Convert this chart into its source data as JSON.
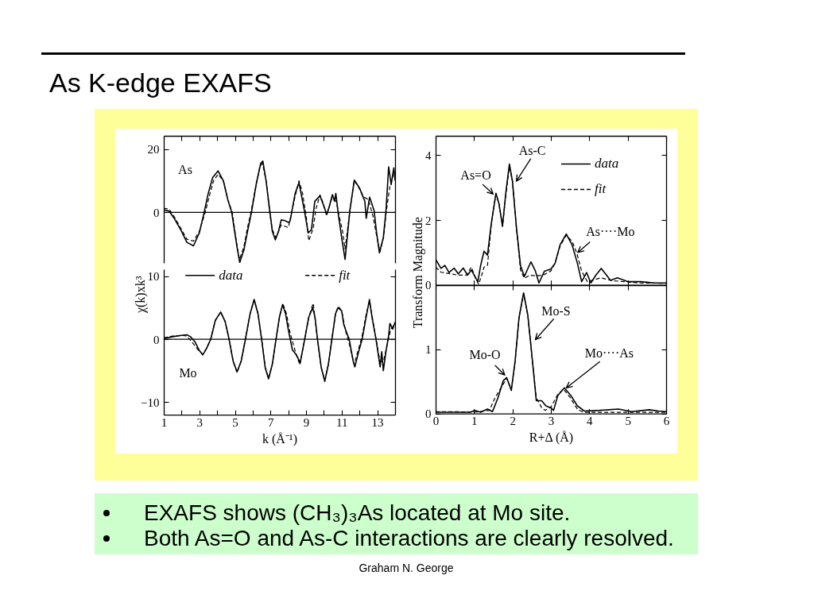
{
  "chart_data": [
    {
      "type": "line",
      "title": "As K-edge EXAFS",
      "xlim": [
        1,
        14
      ],
      "ylim": [
        -16,
        24.2
      ],
      "xticks": [
        1,
        {
          "value": 2,
          "label": null
        },
        3,
        {
          "value": 4,
          "label": null
        },
        5,
        {
          "value": 6,
          "label": null
        },
        7,
        {
          "value": 8,
          "label": null
        },
        9,
        {
          "value": 10,
          "label": null
        },
        11,
        {
          "value": 12,
          "label": null
        },
        13
      ],
      "yticks": [
        0,
        20
      ],
      "tick_labels": "y",
      "ref_lines": [
        {
          "axis": "y",
          "value": 0
        }
      ],
      "annotations": [
        "As"
      ],
      "series": [
        {
          "color": "#000000",
          "line_style": "solid",
          "x": [
            1.0,
            1.3,
            1.6,
            2.0,
            2.3,
            2.67,
            3.0,
            3.27,
            3.5,
            3.75,
            4.05,
            4.35,
            4.6,
            4.82,
            5.1,
            5.27,
            5.5,
            5.71,
            5.93,
            6.2,
            6.45,
            6.57,
            6.75,
            6.97,
            7.1,
            7.27,
            7.45,
            7.6,
            7.8,
            8.0,
            8.1,
            8.38,
            8.6,
            8.9,
            9.12,
            9.3,
            9.49,
            9.78,
            9.95,
            10.16,
            10.3,
            10.48,
            10.6,
            10.67,
            10.82,
            11.04,
            11.19,
            11.46,
            11.71,
            12.0,
            12.3,
            12.38,
            12.57,
            12.82,
            12.95,
            13.12,
            13.34,
            13.49,
            13.64,
            13.78,
            13.93,
            14.0
          ],
          "values": [
            0.8,
            0.4,
            -2,
            -6,
            -9.5,
            -10.6,
            -6.5,
            0,
            6,
            11,
            13.1,
            10,
            4,
            0,
            -10.4,
            -15.9,
            -12,
            -6,
            0,
            9,
            15.5,
            16.2,
            10,
            0,
            -6,
            -8.7,
            -6,
            -2.4,
            -2.6,
            -3.2,
            -2.8,
            5.9,
            9.4,
            0.6,
            -6.5,
            -5.5,
            3.5,
            5.2,
            2.7,
            -0.7,
            1.8,
            5.6,
            3.5,
            6.0,
            -1.1,
            -9.5,
            -14.9,
            0.6,
            10.2,
            7.7,
            3.5,
            -1.9,
            4.8,
            0.6,
            -6,
            -12.8,
            -8,
            0.6,
            14.4,
            8.8,
            14.1,
            10
          ]
        },
        {
          "color": "#000000",
          "line_style": "dashed",
          "x": [
            1.0,
            1.3,
            1.6,
            2.0,
            2.3,
            2.67,
            3.0,
            3.33,
            3.6,
            3.8,
            4.05,
            4.35,
            4.6,
            4.85,
            5.05,
            5.25,
            5.5,
            5.7,
            5.9,
            6.2,
            6.4,
            6.55,
            6.75,
            6.95,
            7.1,
            7.3,
            7.6,
            8.0,
            8.15,
            8.38,
            8.6,
            8.8,
            9.0,
            9.15,
            9.4,
            9.55,
            9.78,
            9.95,
            10.15,
            10.45,
            10.7,
            10.85,
            11.05,
            11.19,
            11.45,
            11.7,
            11.95,
            12.2,
            12.5,
            12.75,
            12.95,
            13.15,
            13.35,
            13.5,
            13.7,
            13.9,
            14.0
          ],
          "values": [
            1.3,
            1.0,
            -1.5,
            -5.5,
            -8.5,
            -9.1,
            -6,
            0,
            6,
            10,
            12,
            10,
            4,
            0,
            -8,
            -15,
            -11,
            -5,
            0,
            9,
            14.5,
            15.5,
            10,
            0,
            -5.5,
            -8,
            -4,
            -4.8,
            -1,
            5,
            10,
            6,
            -1,
            -9,
            -5,
            1,
            5.5,
            3,
            -1,
            4.5,
            3.5,
            -1,
            -6,
            -11.6,
            0,
            10,
            8,
            5,
            4,
            -1,
            -7,
            -12.5,
            -8,
            0,
            8,
            12,
            11
          ]
        }
      ]
    },
    {
      "type": "line",
      "xlabel": "k (Å⁻¹)",
      "ylabel": "χ(k)xk³",
      "xlim": [
        1,
        14
      ],
      "ylim": [
        -12,
        11.1
      ],
      "xticks": [
        1,
        {
          "value": 2,
          "label": null
        },
        3,
        {
          "value": 4,
          "label": null
        },
        5,
        {
          "value": 6,
          "label": null
        },
        7,
        {
          "value": 8,
          "label": null
        },
        9,
        {
          "value": 10,
          "label": null
        },
        11,
        {
          "value": 12,
          "label": null
        },
        13
      ],
      "yticks": [
        -10,
        0,
        10
      ],
      "legend": "top",
      "ref_lines": [
        {
          "axis": "y",
          "value": 0
        }
      ],
      "annotations": [
        "Mo"
      ],
      "series": [
        {
          "name": "data",
          "color": "#000000",
          "line_style": "solid",
          "x": [
            1.0,
            1.5,
            2.0,
            2.3,
            2.5,
            2.75,
            3.0,
            3.19,
            3.4,
            3.64,
            3.9,
            4.2,
            4.45,
            4.67,
            4.9,
            5.12,
            5.35,
            5.59,
            5.85,
            6.08,
            6.3,
            6.5,
            6.7,
            6.89,
            7.1,
            7.31,
            7.5,
            7.68,
            7.85,
            8.0,
            8.23,
            8.45,
            8.67,
            8.92,
            9.15,
            9.37,
            9.5,
            9.64,
            9.85,
            10.05,
            10.25,
            10.45,
            10.65,
            10.79,
            11.0,
            11.12,
            11.27,
            11.42,
            11.64,
            11.74,
            11.96,
            12.15,
            12.38,
            12.56,
            12.72,
            12.93,
            13.05,
            13.16,
            13.25,
            13.34,
            13.49,
            13.64,
            13.71,
            13.87,
            14.0
          ],
          "values": [
            0.1,
            0.4,
            0.6,
            0.7,
            0.4,
            -0.4,
            -1.8,
            -2.5,
            -1.5,
            0,
            3,
            4.3,
            2.8,
            0,
            -3.5,
            -5.2,
            -3.5,
            0,
            4,
            6.3,
            4,
            0,
            -4.5,
            -6.3,
            -4,
            0,
            3.5,
            5.5,
            4,
            1.5,
            -1.7,
            -2.5,
            -3.7,
            0,
            3.5,
            5.0,
            3.5,
            0,
            -4.5,
            -6.7,
            -4,
            0,
            4,
            5.0,
            4.5,
            2.3,
            1.1,
            0,
            -3.4,
            -4.4,
            -1.9,
            0,
            3.6,
            6.3,
            3.2,
            0,
            -2.3,
            -4.4,
            -2,
            -5.0,
            -1.9,
            0.6,
            2.5,
            1.6,
            2.7
          ]
        },
        {
          "name": "fit",
          "color": "#000000",
          "line_style": "dashed",
          "x": [
            1.0,
            1.5,
            2.0,
            2.3,
            2.6,
            2.9,
            3.19,
            3.4,
            3.64,
            3.9,
            4.2,
            4.45,
            4.67,
            4.9,
            5.12,
            5.35,
            5.59,
            5.85,
            6.08,
            6.3,
            6.5,
            6.7,
            6.89,
            7.1,
            7.31,
            7.5,
            7.7,
            7.9,
            8.1,
            8.4,
            8.65,
            8.92,
            9.15,
            9.4,
            9.64,
            9.85,
            10.05,
            10.25,
            10.45,
            10.65,
            10.82,
            11.0,
            11.2,
            11.45,
            11.7,
            11.95,
            12.15,
            12.38,
            12.56,
            12.72,
            12.93,
            13.15,
            13.35,
            13.55,
            13.75,
            14.0
          ],
          "values": [
            0.2,
            0.5,
            0.6,
            0.5,
            -0.5,
            -1.6,
            -2.4,
            -1.5,
            0,
            3,
            4.3,
            2.8,
            0,
            -3.5,
            -5.3,
            -3.5,
            0,
            4,
            6.2,
            4,
            0,
            -4.5,
            -6.2,
            -4,
            0,
            3.5,
            5.6,
            4,
            1,
            -2,
            -4.1,
            0,
            3.5,
            5.7,
            0,
            -4.5,
            -6.5,
            -4,
            0,
            4,
            5.2,
            4.5,
            1.5,
            -1,
            -4,
            -1.5,
            0.5,
            4,
            6,
            3.5,
            0,
            -3.5,
            -3.5,
            -1,
            1.5,
            2.5
          ]
        }
      ]
    },
    {
      "type": "line",
      "ylabel": "Transform Magnitude",
      "xlim": [
        0,
        6
      ],
      "ylim": [
        0,
        4.6
      ],
      "xticks": [
        0,
        1,
        2,
        3,
        4,
        5,
        6
      ],
      "yticks": [
        0,
        2,
        4
      ],
      "tick_labels": "y",
      "legend": "top right",
      "annotations": [
        {
          "text": "As=O",
          "x": 1.5,
          "y": 2.8
        },
        {
          "text": "As-C",
          "x": 2.1,
          "y": 3.2
        },
        {
          "text": "As····Mo",
          "x": 3.7,
          "y": 1.0
        }
      ],
      "series": [
        {
          "name": "data",
          "color": "#000000",
          "line_style": "solid",
          "x": [
            0,
            0.14,
            0.24,
            0.35,
            0.48,
            0.59,
            0.72,
            0.83,
            0.93,
            1.04,
            1.1,
            1.17,
            1.26,
            1.35,
            1.45,
            1.57,
            1.65,
            1.74,
            1.83,
            1.92,
            2.0,
            2.1,
            2.21,
            2.31,
            2.4,
            2.48,
            2.59,
            2.69,
            2.83,
            3.0,
            3.11,
            3.24,
            3.4,
            3.55,
            3.69,
            3.8,
            3.93,
            4.04,
            4.17,
            4.31,
            4.45,
            4.55,
            4.73,
            5.0,
            5.34,
            5.69,
            6.0
          ],
          "values": [
            0.79,
            0.51,
            0.6,
            0.38,
            0.52,
            0.34,
            0.52,
            0.3,
            0.46,
            0.22,
            0.1,
            0.59,
            1.04,
            0.92,
            1.9,
            2.83,
            2.5,
            1.81,
            2.87,
            3.73,
            3.2,
            1.81,
            0.59,
            0.26,
            0.5,
            0.71,
            0.45,
            0.06,
            0.42,
            0.49,
            0.67,
            1.24,
            1.57,
            1.24,
            0.67,
            0.1,
            0.38,
            0.06,
            0.3,
            0.51,
            0.3,
            0.14,
            0.22,
            0.1,
            0.1,
            0.06,
            0.06
          ]
        },
        {
          "name": "fit",
          "color": "#000000",
          "line_style": "dashed",
          "x": [
            0,
            0.14,
            0.35,
            0.59,
            0.8,
            0.93,
            1.04,
            1.12,
            1.2,
            1.26,
            1.35,
            1.45,
            1.57,
            1.65,
            1.74,
            1.83,
            1.92,
            2.0,
            2.1,
            2.21,
            2.31,
            2.45,
            2.6,
            2.8,
            3.0,
            3.11,
            3.24,
            3.4,
            3.55,
            3.67,
            3.8,
            3.95,
            4.1,
            4.3,
            4.6,
            4.9,
            5.3,
            6.0
          ],
          "values": [
            0.55,
            0.39,
            0.35,
            0.3,
            0.3,
            0.55,
            0.2,
            0.02,
            0.3,
            0.55,
            0.6,
            1.9,
            2.8,
            2.5,
            1.81,
            2.8,
            3.65,
            3.2,
            1.81,
            0.45,
            0.2,
            0.3,
            0.28,
            0.3,
            0.43,
            0.67,
            1.2,
            1.53,
            1.35,
            1.0,
            0.43,
            0.1,
            0.15,
            0.22,
            0.13,
            0.1,
            0.06,
            0.05
          ]
        }
      ]
    },
    {
      "type": "line",
      "xlabel": "R+Δ (Å)",
      "xlim": [
        0,
        6
      ],
      "ylim": [
        0,
        2
      ],
      "xticks": [
        0,
        1,
        2,
        3,
        4,
        5,
        6
      ],
      "yticks": [
        0,
        1
      ],
      "annotations": [
        {
          "text": "Mo-O",
          "x": 1.8,
          "y": 0.6
        },
        {
          "text": "Mo-S",
          "x": 2.47,
          "y": 1.15
        },
        {
          "text": "Mo····As",
          "x": 3.4,
          "y": 0.4
        }
      ],
      "series": [
        {
          "color": "#000000",
          "line_style": "solid",
          "x": [
            0,
            0.5,
            0.9,
            1.02,
            1.17,
            1.35,
            1.48,
            1.62,
            1.76,
            1.85,
            1.97,
            2.07,
            2.17,
            2.29,
            2.4,
            2.52,
            2.62,
            2.76,
            2.87,
            3.0,
            3.07,
            3.18,
            3.35,
            3.52,
            3.69,
            3.87,
            4.27,
            4.76,
            5.1,
            5.56,
            5.8,
            6.0
          ],
          "values": [
            0.02,
            0.02,
            0.02,
            0.05,
            0.02,
            0.07,
            0.03,
            0.24,
            0.51,
            0.56,
            0.36,
            0.82,
            1.49,
            1.88,
            1.53,
            0.82,
            0.2,
            0.2,
            0.12,
            0.09,
            0.05,
            0.28,
            0.4,
            0.28,
            0.12,
            0.04,
            0.05,
            0.07,
            0.03,
            0.06,
            0.04,
            0.03
          ]
        },
        {
          "color": "#000000",
          "line_style": "dashed",
          "x": [
            0,
            0.5,
            1.0,
            1.4,
            1.55,
            1.7,
            1.85,
            1.97,
            2.07,
            2.17,
            2.29,
            2.4,
            2.52,
            2.62,
            2.75,
            2.85,
            3.0,
            3.18,
            3.33,
            3.5,
            3.7,
            3.87,
            4.5,
            5.0,
            6.0
          ],
          "values": [
            0.03,
            0.03,
            0.02,
            0.05,
            0.25,
            0.4,
            0.55,
            0.38,
            0.82,
            1.49,
            1.87,
            1.53,
            0.82,
            0.25,
            0.1,
            0.05,
            0.1,
            0.3,
            0.38,
            0.25,
            0.06,
            0.02,
            0.02,
            0.02,
            0.02
          ]
        }
      ]
    },
    {
      "type": "other",
      "annotations": [
        "EXAFS shows (CH₃)₃As located at Mo site.",
        "Both As=O and As-C interactions are clearly resolved.",
        "Graham N. George"
      ]
    }
  ]
}
